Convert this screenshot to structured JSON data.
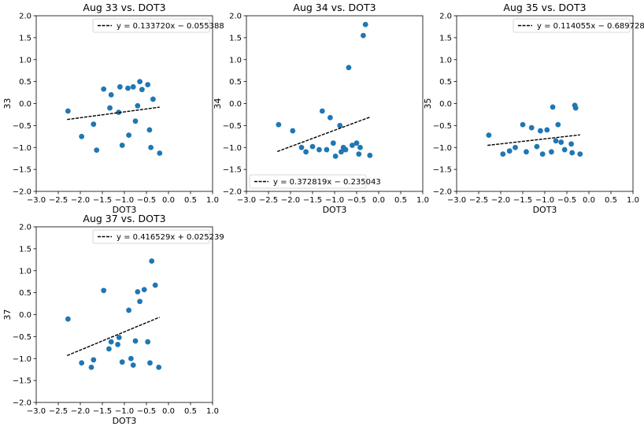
{
  "figure": {
    "background": "#ffffff",
    "point_color": "#1f77b4",
    "fit_color": "#000000"
  },
  "chart_data": [
    {
      "type": "scatter",
      "title": "Aug 33 vs. DOT3",
      "xlabel": "DOT3",
      "ylabel": "33",
      "xlim": [
        -3.0,
        1.0
      ],
      "ylim": [
        -2.0,
        2.0
      ],
      "xticks": [
        "−3.0",
        "−2.5",
        "−2.0",
        "−1.5",
        "−1.0",
        "−0.5",
        "0.0",
        "0.5",
        "1.0"
      ],
      "yticks": [
        "−2.0",
        "−1.5",
        "−1.0",
        "−0.5",
        "0.0",
        "0.5",
        "1.0",
        "1.5",
        "2.0"
      ],
      "legend": "y = 0.133720x − 0.055388",
      "legend_loc": "upper right",
      "fit": {
        "slope": 0.13372,
        "intercept": -0.055388,
        "x_range": [
          -2.3,
          -0.2
        ]
      },
      "x": [
        -2.28,
        -1.97,
        -1.7,
        -1.63,
        -1.47,
        -1.33,
        -1.3,
        -1.13,
        -1.1,
        -1.05,
        -0.92,
        -0.9,
        -0.8,
        -0.75,
        -0.7,
        -0.65,
        -0.6,
        -0.47,
        -0.43,
        -0.4,
        -0.35,
        -0.2
      ],
      "y": [
        -0.17,
        -0.75,
        -0.47,
        -1.06,
        0.33,
        -0.1,
        0.2,
        -0.2,
        0.38,
        -0.95,
        0.35,
        -0.72,
        0.38,
        -0.4,
        -0.05,
        0.5,
        0.32,
        0.43,
        -0.6,
        -1.0,
        0.1,
        -1.13
      ]
    },
    {
      "type": "scatter",
      "title": "Aug 34 vs. DOT3",
      "xlabel": "DOT3",
      "ylabel": "34",
      "xlim": [
        -3.0,
        1.0
      ],
      "ylim": [
        -2.0,
        2.0
      ],
      "xticks": [
        "−3.0",
        "−2.5",
        "−2.0",
        "−1.5",
        "−1.0",
        "−0.5",
        "0.0",
        "0.5",
        "1.0"
      ],
      "yticks": [
        "−2.0",
        "−1.5",
        "−1.0",
        "−0.5",
        "0.0",
        "0.5",
        "1.0",
        "1.5",
        "2.0"
      ],
      "legend": "y = 0.372819x − 0.235043",
      "legend_loc": "lower left",
      "fit": {
        "slope": 0.372819,
        "intercept": -0.235043,
        "x_range": [
          -2.3,
          -0.2
        ]
      },
      "x": [
        -2.27,
        -1.95,
        -1.75,
        -1.65,
        -1.5,
        -1.35,
        -1.28,
        -1.18,
        -1.1,
        -1.03,
        -0.98,
        -0.88,
        -0.85,
        -0.8,
        -0.75,
        -0.68,
        -0.6,
        -0.5,
        -0.45,
        -0.42,
        -0.35,
        -0.3,
        -0.2
      ],
      "y": [
        -0.48,
        -0.62,
        -1.0,
        -1.1,
        -0.98,
        -1.05,
        -0.17,
        -1.05,
        -0.32,
        -0.9,
        -1.2,
        -0.5,
        -1.1,
        -1.0,
        -1.05,
        0.82,
        -0.95,
        -0.9,
        -1.15,
        -1.0,
        1.55,
        1.8,
        -1.18
      ]
    },
    {
      "type": "scatter",
      "title": "Aug 35 vs. DOT3",
      "xlabel": "DOT3",
      "ylabel": "35",
      "xlim": [
        -3.0,
        1.0
      ],
      "ylim": [
        -2.0,
        2.0
      ],
      "xticks": [
        "−3.0",
        "−2.5",
        "−2.0",
        "−1.5",
        "−1.0",
        "−0.5",
        "0.0",
        "0.5",
        "1.0"
      ],
      "yticks": [
        "−2.0",
        "−1.5",
        "−1.0",
        "−0.5",
        "0.0",
        "0.5",
        "1.0",
        "1.5",
        "2.0"
      ],
      "legend": "y = 0.114055x − 0.689728",
      "legend_loc": "upper right",
      "fit": {
        "slope": 0.114055,
        "intercept": -0.689728,
        "x_range": [
          -2.3,
          -0.2
        ]
      },
      "x": [
        -2.27,
        -1.95,
        -1.8,
        -1.67,
        -1.5,
        -1.42,
        -1.3,
        -1.18,
        -1.1,
        -1.05,
        -0.95,
        -0.85,
        -0.82,
        -0.75,
        -0.7,
        -0.63,
        -0.55,
        -0.4,
        -0.38,
        -0.32,
        -0.3,
        -0.2
      ],
      "y": [
        -0.72,
        -1.15,
        -1.08,
        -1.0,
        -0.48,
        -1.1,
        -0.55,
        -0.98,
        -0.62,
        -1.15,
        -0.6,
        -1.1,
        -0.08,
        -0.85,
        -0.48,
        -0.88,
        -1.05,
        -0.92,
        -1.12,
        -0.04,
        -0.1,
        -1.15
      ]
    },
    {
      "type": "scatter",
      "title": "Aug 37 vs. DOT3",
      "xlabel": "DOT3",
      "ylabel": "37",
      "xlim": [
        -3.0,
        1.0
      ],
      "ylim": [
        -2.0,
        2.0
      ],
      "xticks": [
        "−3.0",
        "−2.5",
        "−2.0",
        "−1.5",
        "−1.0",
        "−0.5",
        "0.0",
        "0.5",
        "1.0"
      ],
      "yticks": [
        "−2.0",
        "−1.5",
        "−1.0",
        "−0.5",
        "0.0",
        "0.5",
        "1.0",
        "1.5",
        "2.0"
      ],
      "legend": "y = 0.416529x + 0.025239",
      "legend_loc": "upper right",
      "fit": {
        "slope": 0.416529,
        "intercept": 0.025239,
        "x_range": [
          -2.3,
          -0.2
        ]
      },
      "x": [
        -2.28,
        -1.97,
        -1.75,
        -1.7,
        -1.47,
        -1.35,
        -1.3,
        -1.15,
        -1.12,
        -1.05,
        -0.9,
        -0.85,
        -0.8,
        -0.75,
        -0.7,
        -0.65,
        -0.55,
        -0.47,
        -0.42,
        -0.38,
        -0.3,
        -0.22
      ],
      "y": [
        -0.1,
        -1.1,
        -1.2,
        -1.03,
        0.55,
        -0.78,
        -0.62,
        -0.68,
        -0.52,
        -1.08,
        0.1,
        -1.0,
        -1.15,
        -0.6,
        0.52,
        0.3,
        0.57,
        -0.62,
        -1.1,
        1.22,
        0.67,
        -1.2
      ]
    }
  ]
}
